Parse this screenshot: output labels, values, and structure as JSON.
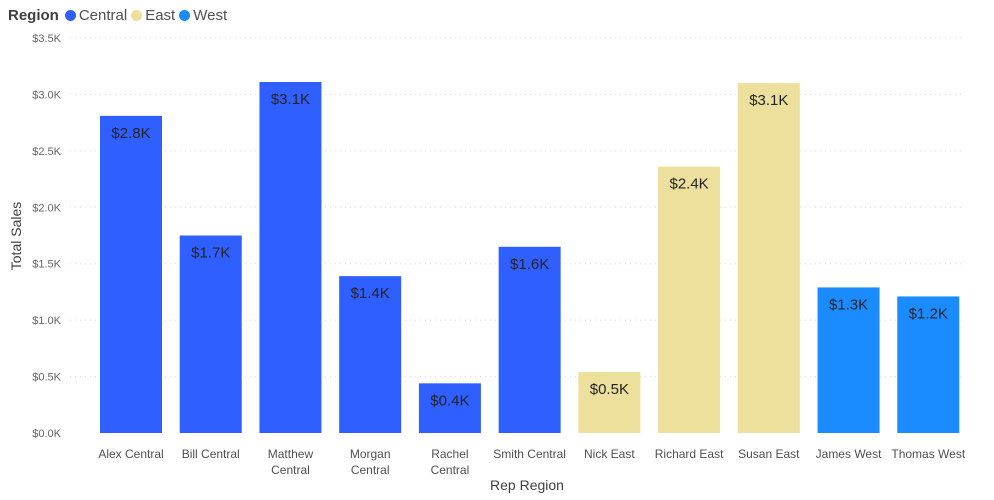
{
  "chart_data": {
    "type": "bar",
    "xlabel": "Rep Region",
    "ylabel": "Total Sales",
    "ylim": [
      0,
      3500
    ],
    "yticks": [
      0,
      500,
      1000,
      1500,
      2000,
      2500,
      3000,
      3500
    ],
    "ytick_labels": [
      "$0.0K",
      "$0.5K",
      "$1.0K",
      "$1.5K",
      "$2.0K",
      "$2.5K",
      "$3.0K",
      "$3.5K"
    ],
    "grid": true,
    "legend": {
      "title": "Region",
      "position": "top-left",
      "items": [
        {
          "name": "Central",
          "color": "#2f5ffe"
        },
        {
          "name": "East",
          "color": "#ede09c"
        },
        {
          "name": "West",
          "color": "#1a8cff"
        }
      ]
    },
    "categories": [
      "Alex Central",
      "Bill Central",
      "Matthew Central",
      "Morgan Central",
      "Rachel Central",
      "Smith Central",
      "Nick East",
      "Richard East",
      "Susan East",
      "James West",
      "Thomas West"
    ],
    "category_label_lines": [
      [
        "Alex Central"
      ],
      [
        "Bill Central"
      ],
      [
        "Matthew",
        "Central"
      ],
      [
        "Morgan",
        "Central"
      ],
      [
        "Rachel",
        "Central"
      ],
      [
        "Smith Central"
      ],
      [
        "Nick East"
      ],
      [
        "Richard East"
      ],
      [
        "Susan East"
      ],
      [
        "James West"
      ],
      [
        "Thomas West"
      ]
    ],
    "region": [
      "Central",
      "Central",
      "Central",
      "Central",
      "Central",
      "Central",
      "East",
      "East",
      "East",
      "West",
      "West"
    ],
    "values": [
      2810,
      1750,
      3110,
      1390,
      440,
      1650,
      540,
      2360,
      3100,
      1290,
      1210
    ],
    "data_labels": [
      "$2.8K",
      "$1.7K",
      "$3.1K",
      "$1.4K",
      "$0.4K",
      "$1.6K",
      "$0.5K",
      "$2.4K",
      "$3.1K",
      "$1.3K",
      "$1.2K"
    ]
  }
}
